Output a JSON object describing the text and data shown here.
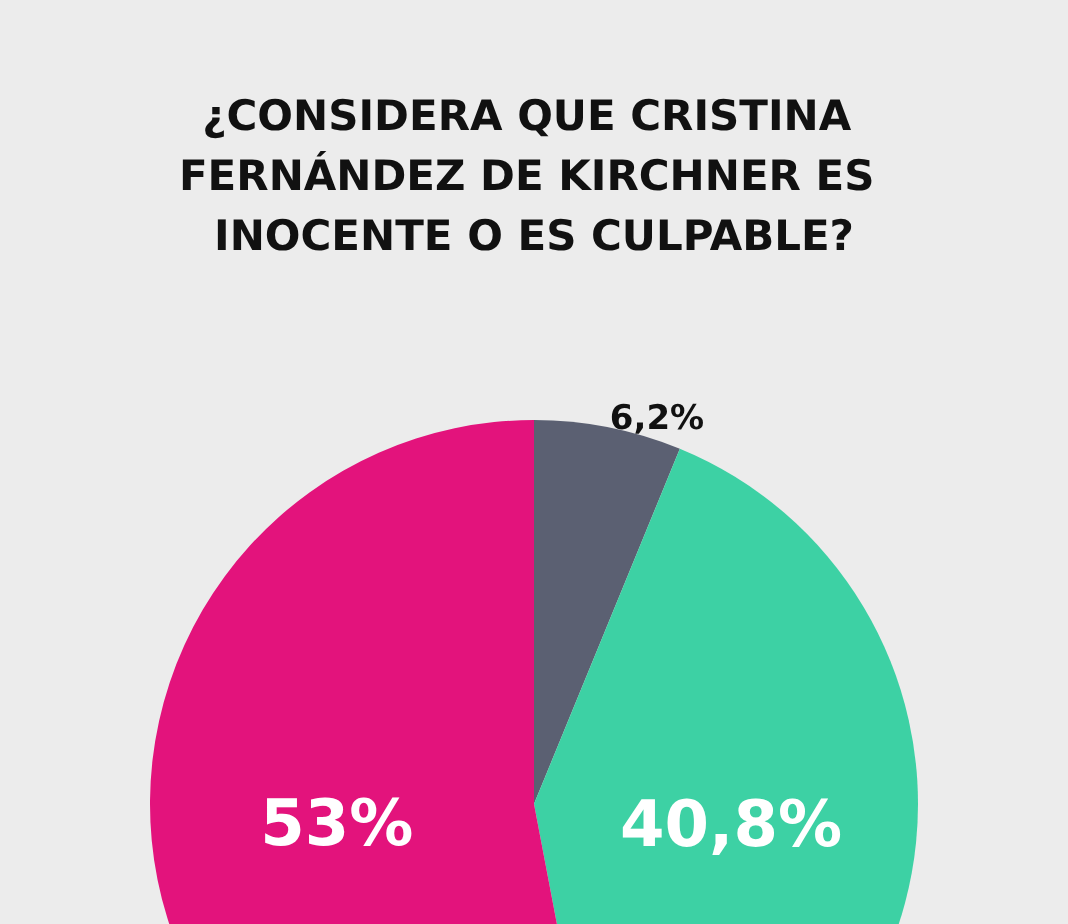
{
  "chart_data": {
    "type": "pie",
    "title": "¿CONSIDERA QUE CRISTINA FERNÁNDEZ DE KIRCHNER ES INOCENTE O ES CULPABLE?",
    "categories": [
      null,
      null,
      null
    ],
    "values": [
      6.2,
      40.8,
      53
    ],
    "value_labels": [
      "6,2%",
      "40,8%",
      "53%"
    ],
    "colors": [
      "#5b6072",
      "#3dd1a4",
      "#e3137c"
    ]
  }
}
